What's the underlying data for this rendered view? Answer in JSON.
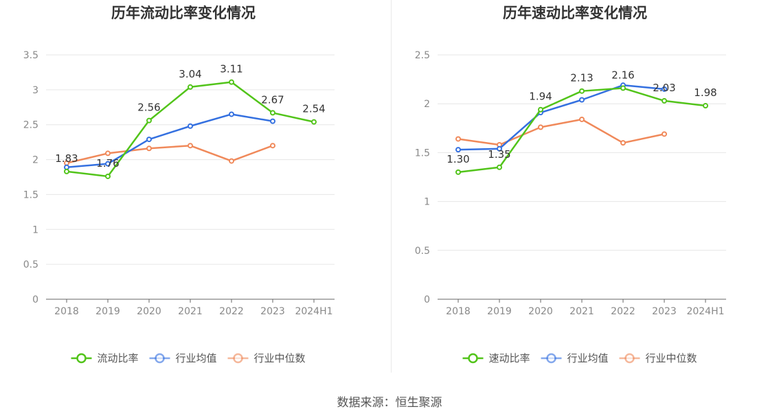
{
  "source": "数据来源：恒生聚源",
  "colors": {
    "primary": "#52c41a",
    "average": "#3470e0",
    "median": "#f0895a"
  },
  "chart_data": [
    {
      "type": "line",
      "title": "历年流动比率变化情况",
      "categories": [
        "2018",
        "2019",
        "2020",
        "2021",
        "2022",
        "2023",
        "2024H1"
      ],
      "ylim": [
        0,
        3.5
      ],
      "yticks": [
        "0",
        "0.5",
        "1",
        "1.5",
        "2",
        "2.5",
        "3",
        "3.5"
      ],
      "grid": true,
      "legend_position": "bottom",
      "series": [
        {
          "name": "流动比率",
          "color": "#52c41a",
          "values": [
            1.83,
            1.76,
            2.56,
            3.04,
            3.11,
            2.67,
            2.54
          ],
          "labels": [
            "1.83",
            "1.76",
            "2.56",
            "3.04",
            "3.11",
            "2.67",
            "2.54"
          ]
        },
        {
          "name": "行业均值",
          "color": "#3470e0",
          "values": [
            1.89,
            1.94,
            2.29,
            2.48,
            2.65,
            2.55,
            null
          ]
        },
        {
          "name": "行业中位数",
          "color": "#f0895a",
          "values": [
            1.95,
            2.09,
            2.16,
            2.2,
            1.98,
            2.2,
            null
          ]
        }
      ]
    },
    {
      "type": "line",
      "title": "历年速动比率变化情况",
      "categories": [
        "2018",
        "2019",
        "2020",
        "2021",
        "2022",
        "2023",
        "2024H1"
      ],
      "ylim": [
        0,
        2.5
      ],
      "yticks": [
        "0",
        "0.5",
        "1",
        "1.5",
        "2",
        "2.5"
      ],
      "grid": true,
      "legend_position": "bottom",
      "series": [
        {
          "name": "速动比率",
          "color": "#52c41a",
          "values": [
            1.3,
            1.35,
            1.94,
            2.13,
            2.16,
            2.03,
            1.98
          ],
          "labels": [
            "1.30",
            "1.35",
            "1.94",
            "2.13",
            "2.16",
            "2.03",
            "1.98"
          ]
        },
        {
          "name": "行业均值",
          "color": "#3470e0",
          "values": [
            1.53,
            1.54,
            1.91,
            2.04,
            2.19,
            2.15,
            null
          ]
        },
        {
          "name": "行业中位数",
          "color": "#f0895a",
          "values": [
            1.64,
            1.58,
            1.76,
            1.84,
            1.6,
            1.69,
            null
          ]
        }
      ]
    }
  ]
}
